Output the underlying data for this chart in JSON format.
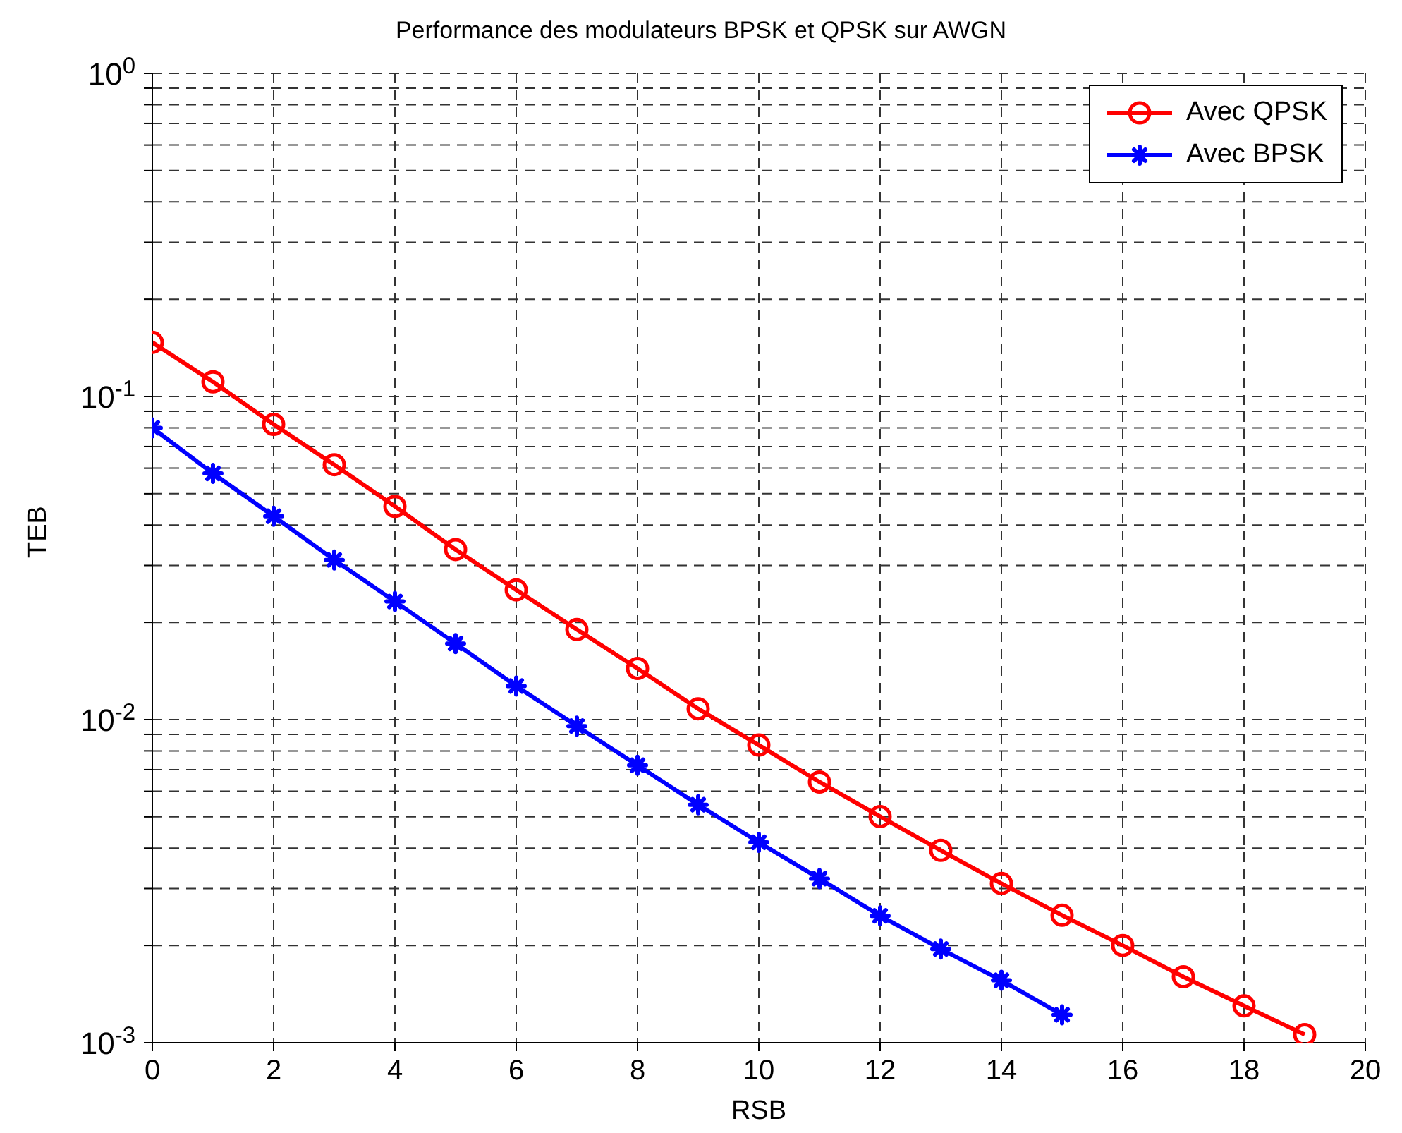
{
  "chart_data": {
    "type": "line",
    "title": "Performance des modulateurs BPSK et QPSK sur AWGN",
    "xlabel": "RSB",
    "ylabel": "TEB",
    "series": [
      {
        "name": "Avec QPSK",
        "color": "#ff0000",
        "marker": "circle",
        "x": [
          0,
          1,
          2,
          3,
          4,
          5,
          6,
          7,
          8,
          9,
          10,
          11,
          12,
          13,
          14,
          15,
          16,
          17,
          18,
          19
        ],
        "values": [
          0.147,
          0.111,
          0.082,
          0.0615,
          0.0457,
          0.0336,
          0.0252,
          0.019,
          0.0144,
          0.0108,
          0.00834,
          0.00641,
          0.00501,
          0.00394,
          0.00311,
          0.00248,
          0.002,
          0.0016,
          0.0013,
          0.00106
        ]
      },
      {
        "name": "Avec BPSK",
        "color": "#0000ff",
        "marker": "cross",
        "x": [
          0,
          1,
          2,
          3,
          4,
          5,
          6,
          7,
          8,
          9,
          10,
          11,
          12,
          13,
          14,
          15
        ],
        "values": [
          0.08,
          0.0578,
          0.0426,
          0.0312,
          0.0232,
          0.0172,
          0.0127,
          0.00955,
          0.00722,
          0.00545,
          0.00417,
          0.00322,
          0.00247,
          0.00195,
          0.00156,
          0.00122
        ]
      }
    ],
    "xlim": [
      0,
      20
    ],
    "xticks": [
      0,
      2,
      4,
      6,
      8,
      10,
      12,
      14,
      16,
      18,
      20
    ],
    "ylim": [
      0.001,
      1
    ],
    "log": "y",
    "yticks": [
      {
        "value": 0.001,
        "label": "10$^{-3}$"
      },
      {
        "value": 0.002,
        "label": null
      },
      {
        "value": 0.003,
        "label": null
      },
      {
        "value": 0.004,
        "label": null
      },
      {
        "value": 0.005,
        "label": null
      },
      {
        "value": 0.006,
        "label": null
      },
      {
        "value": 0.007,
        "label": null
      },
      {
        "value": 0.008,
        "label": null
      },
      {
        "value": 0.009,
        "label": null
      },
      {
        "value": 0.01,
        "label": "10$^{-2}$"
      },
      {
        "value": 0.02,
        "label": null
      },
      {
        "value": 0.03,
        "label": null
      },
      {
        "value": 0.04,
        "label": null
      },
      {
        "value": 0.05,
        "label": null
      },
      {
        "value": 0.06,
        "label": null
      },
      {
        "value": 0.07,
        "label": null
      },
      {
        "value": 0.08,
        "label": null
      },
      {
        "value": 0.09,
        "label": null
      },
      {
        "value": 0.1,
        "label": "10$^{-1}$"
      },
      {
        "value": 0.2,
        "label": null
      },
      {
        "value": 0.3,
        "label": null
      },
      {
        "value": 0.4,
        "label": null
      },
      {
        "value": 0.5,
        "label": null
      },
      {
        "value": 0.6,
        "label": null
      },
      {
        "value": 0.7,
        "label": null
      },
      {
        "value": 0.8,
        "label": null
      },
      {
        "value": 0.9,
        "label": null
      },
      {
        "value": 1,
        "label": "10$^{0}$"
      }
    ],
    "grid": true,
    "legend": "top right",
    "line_style": "solid"
  }
}
